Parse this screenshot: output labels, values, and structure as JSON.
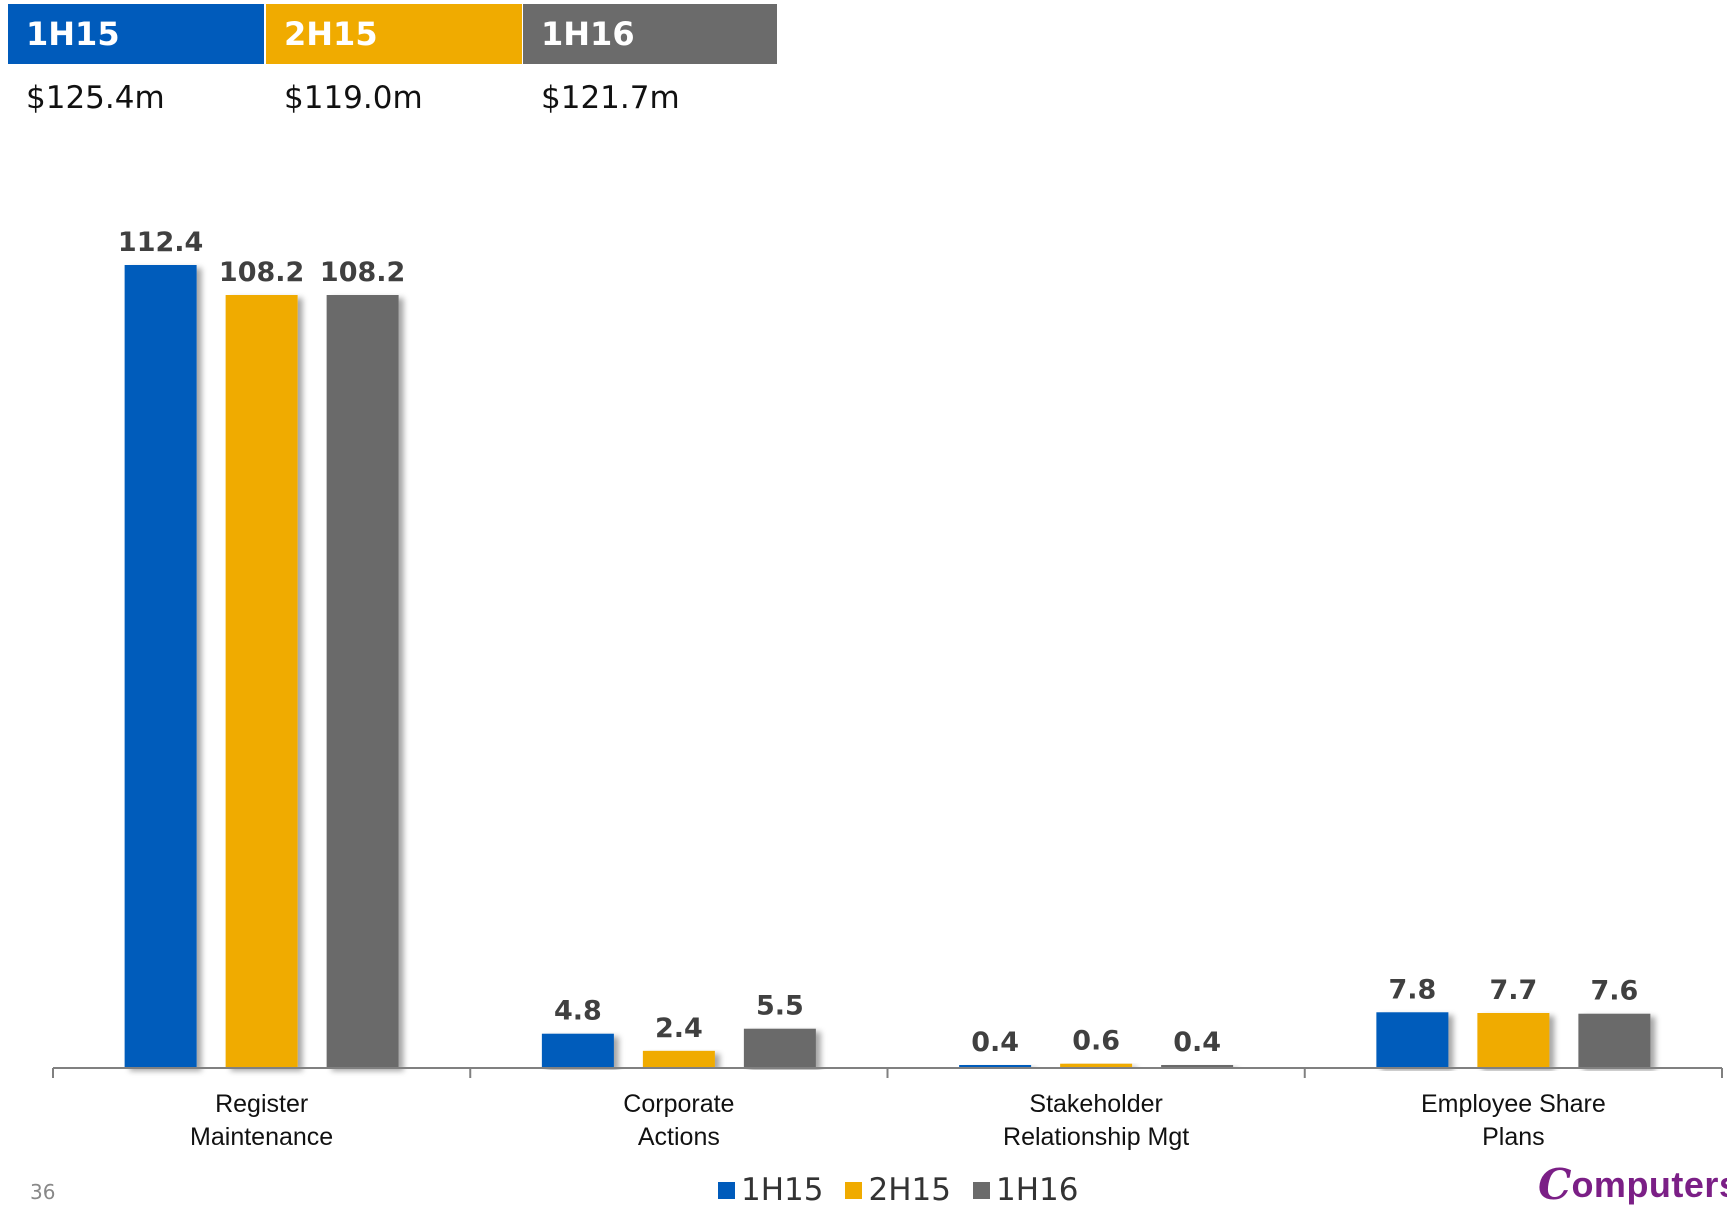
{
  "summary": [
    {
      "period": "1H15",
      "total": "$125.4m",
      "color": "#005bbb"
    },
    {
      "period": "2H15",
      "total": "$119.0m",
      "color": "#f0ab00"
    },
    {
      "period": "1H16",
      "total": "$121.7m",
      "color": "#6b6b6b"
    }
  ],
  "chart_data": {
    "type": "bar",
    "categories": [
      [
        "Register",
        "Maintenance"
      ],
      [
        "Corporate",
        "Actions"
      ],
      [
        "Stakeholder",
        "Relationship Mgt"
      ],
      [
        "Employee Share",
        "Plans"
      ]
    ],
    "series": [
      {
        "name": "1H15",
        "color": "#005bbb",
        "values": [
          112.4,
          4.8,
          0.4,
          7.8
        ],
        "labels": [
          "112.4",
          "4.8",
          "0.4",
          "7.8"
        ]
      },
      {
        "name": "2H15",
        "color": "#f0ab00",
        "values": [
          108.2,
          2.4,
          0.6,
          7.7
        ],
        "labels": [
          "108.2",
          "2.4",
          "0.6",
          "7.7"
        ]
      },
      {
        "name": "1H16",
        "color": "#6b6b6b",
        "values": [
          108.2,
          5.5,
          0.4,
          7.6
        ],
        "labels": [
          "108.2",
          "5.5",
          "0.4",
          "7.6"
        ]
      }
    ],
    "ylim": [
      0,
      112.4
    ],
    "grid": false,
    "legend_position": "bottom-center",
    "data_labels": true
  },
  "footer": {
    "page_number": "36",
    "logo_text": "omputersh",
    "logo_mark": "C",
    "logo_icon": "computershare-logo-icon"
  }
}
